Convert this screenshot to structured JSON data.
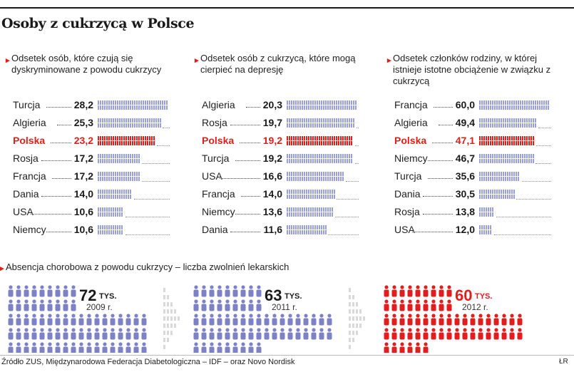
{
  "title": "Osoby z cukrzycą w Polsce",
  "source": "Źródło ZUS, Międzynarodowa Federacja Diabetologiczna – IDF – oraz Novo Nordisk",
  "credit": "ŁR",
  "colors": {
    "highlight": "#e31d1d",
    "bar": "#9aa0d6",
    "person": "#7d82c6",
    "person_red": "#e31d1d",
    "ghost": "#d9d9d9"
  },
  "chart_data": [
    {
      "type": "bar",
      "title": "Odsetek osób, które czują się dyskryminowane z powodu cukrzycy",
      "highlight": "Polska",
      "categories": [
        "Turcja",
        "Algieria",
        "Polska",
        "Rosja",
        "Francja",
        "Dania",
        "USA",
        "Niemcy"
      ],
      "values": [
        28.2,
        25.3,
        23.2,
        17.2,
        17.2,
        14.0,
        10.6,
        10.6
      ],
      "labels": [
        "28,2",
        "25,3",
        "23,2",
        "17,2",
        "17,2",
        "14,0",
        "10,6",
        "10,6"
      ]
    },
    {
      "type": "bar",
      "title": "Odsetek osób z cukrzycą, które mogą cierpieć na depresję",
      "highlight": "Polska",
      "categories": [
        "Algieria",
        "Rosja",
        "Polska",
        "Turcja",
        "USA",
        "Francja",
        "Niemcy",
        "Dania"
      ],
      "values": [
        20.3,
        19.7,
        19.2,
        19.2,
        16.6,
        14.0,
        13.6,
        11.6
      ],
      "labels": [
        "20,3",
        "19,7",
        "19,2",
        "19,2",
        "16,6",
        "14,0",
        "13,6",
        "11,6"
      ]
    },
    {
      "type": "bar",
      "title": "Odsetek członków rodziny, w której istnieje istotne obciążenie w związku z cukrzycą",
      "highlight": "Polska",
      "categories": [
        "Francja",
        "Algieria",
        "Polska",
        "Niemcy",
        "Turcja",
        "Dania",
        "Rosja",
        "USA"
      ],
      "values": [
        60.0,
        49.4,
        47.1,
        46.7,
        35.6,
        30.5,
        13.8,
        12.0
      ],
      "labels": [
        "60,0",
        "49,4",
        "47,1",
        "46,7",
        "35,6",
        "30,5",
        "13,8",
        "12,0"
      ]
    },
    {
      "type": "bar",
      "title": "Absencja chorobowa z powodu cukrzycy – liczba zwolnień lekarskich",
      "unit": "TYS.",
      "categories": [
        "2009 r.",
        "2011 r.",
        "2012 r."
      ],
      "values": [
        72,
        63,
        60
      ],
      "highlight": "2012 r."
    }
  ]
}
